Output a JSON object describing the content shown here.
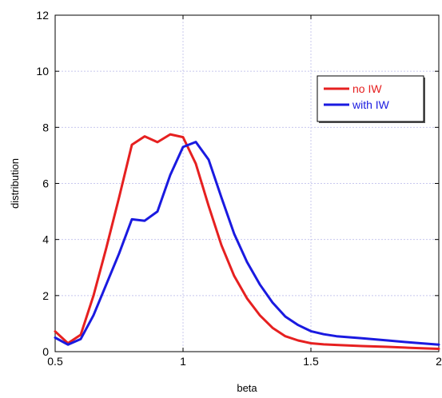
{
  "chart_data": {
    "type": "line",
    "title": "",
    "xlabel": "beta",
    "ylabel": "distribution",
    "xlim": [
      0.5,
      2
    ],
    "ylim": [
      0,
      12
    ],
    "xticks": [
      0.5,
      1,
      1.5,
      2
    ],
    "xtick_labels": [
      "0.5",
      "1",
      "1.5",
      "2"
    ],
    "yticks": [
      0,
      2,
      4,
      6,
      8,
      10,
      12
    ],
    "ytick_labels": [
      "0",
      "2",
      "4",
      "6",
      "8",
      "10",
      "12"
    ],
    "grid": true,
    "legend_position": "top-right",
    "series": [
      {
        "name": "no IW",
        "color": "#e62020",
        "x": [
          0.5,
          0.55,
          0.6,
          0.65,
          0.7,
          0.75,
          0.8,
          0.85,
          0.9,
          0.95,
          1.0,
          1.05,
          1.1,
          1.15,
          1.2,
          1.25,
          1.3,
          1.35,
          1.4,
          1.45,
          1.5,
          1.55,
          1.6,
          1.7,
          1.8,
          1.9,
          2.0
        ],
        "y": [
          0.72,
          0.3,
          0.6,
          2.0,
          3.7,
          5.5,
          7.38,
          7.68,
          7.47,
          7.75,
          7.65,
          6.7,
          5.2,
          3.8,
          2.7,
          1.9,
          1.3,
          0.85,
          0.55,
          0.4,
          0.3,
          0.26,
          0.24,
          0.2,
          0.17,
          0.13,
          0.1
        ]
      },
      {
        "name": "with IW",
        "color": "#1a1ae0",
        "x": [
          0.5,
          0.55,
          0.6,
          0.65,
          0.7,
          0.75,
          0.8,
          0.85,
          0.9,
          0.95,
          1.0,
          1.05,
          1.1,
          1.15,
          1.2,
          1.25,
          1.3,
          1.35,
          1.4,
          1.45,
          1.5,
          1.55,
          1.6,
          1.7,
          1.8,
          1.9,
          2.0
        ],
        "y": [
          0.5,
          0.25,
          0.45,
          1.3,
          2.4,
          3.5,
          4.72,
          4.67,
          5.0,
          6.3,
          7.3,
          7.48,
          6.85,
          5.5,
          4.2,
          3.2,
          2.4,
          1.75,
          1.25,
          0.95,
          0.73,
          0.62,
          0.55,
          0.48,
          0.4,
          0.32,
          0.25
        ]
      }
    ]
  }
}
